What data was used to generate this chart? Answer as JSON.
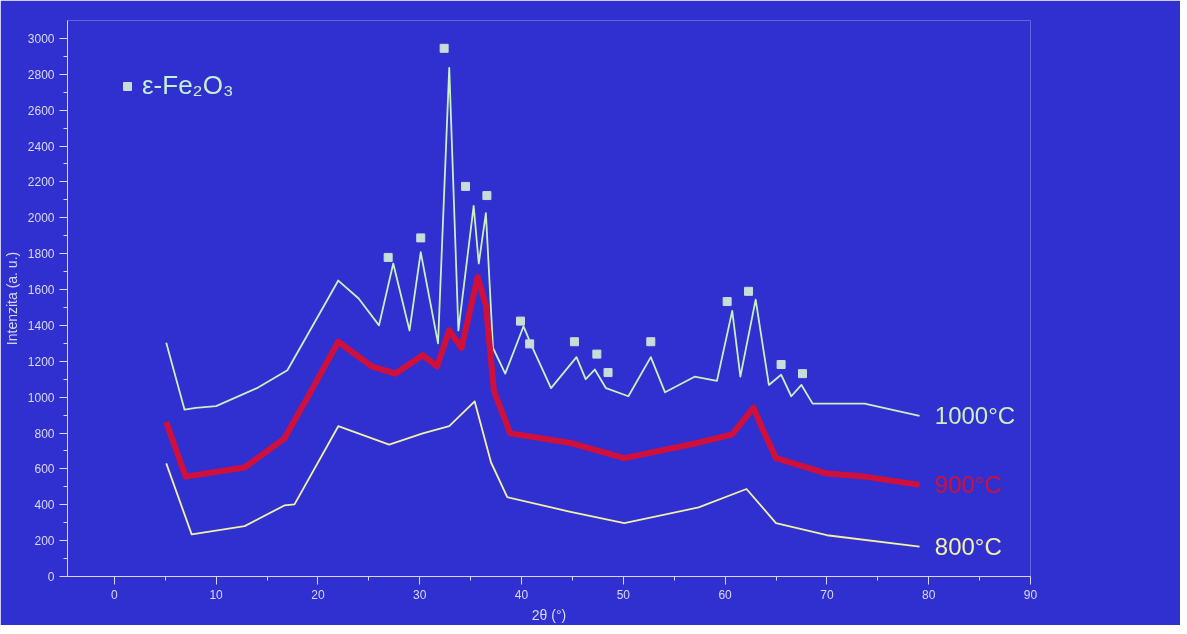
{
  "chart_data": {
    "type": "line",
    "xlabel": "2θ (°)",
    "ylabel": "Intenzita (a. u.)",
    "xlim": [
      -4.6,
      90
    ],
    "ylim": [
      0,
      3100
    ],
    "xticks": [
      0,
      10,
      20,
      30,
      40,
      50,
      60,
      70,
      80,
      90
    ],
    "yticks": [
      0,
      200,
      400,
      600,
      800,
      1000,
      1200,
      1400,
      1600,
      1800,
      2000,
      2200,
      2400,
      2600,
      2800,
      3000
    ],
    "grid": false,
    "legend": "top left",
    "series": [
      {
        "name": "1000°C",
        "color": "#c8f0c0",
        "x": [
          5.1,
          6.9,
          8,
          10,
          14,
          17,
          20,
          22,
          24,
          26,
          27.4,
          29,
          30.1,
          31.8,
          32.9,
          33.8,
          35.3,
          35.8,
          36.5,
          37.2,
          38.4,
          40.2,
          41,
          42.9,
          45.4,
          46.3,
          47.2,
          48.3,
          50.5,
          52.7,
          54.1,
          57,
          59.2,
          60.7,
          61.5,
          63,
          64.3,
          65.5,
          66.5,
          67.5,
          68.6,
          73.7,
          79.1
        ],
        "values": [
          1303,
          930,
          940,
          950,
          1050,
          1150,
          1450,
          1650,
          1550,
          1400,
          1745,
          1372,
          1808,
          1300,
          2836,
          1372,
          2066,
          1745,
          2026,
          1274,
          1131,
          1395,
          1286,
          1050,
          1223,
          1100,
          1154,
          1050,
          1005,
          1223,
          1027,
          1114,
          1091,
          1481,
          1114,
          1544,
          1068,
          1125,
          1005,
          1068,
          964,
          964,
          895
        ]
      },
      {
        "name": "900°C",
        "color": "#d0103a",
        "x": [
          5.1,
          7,
          12.8,
          16.7,
          19,
          22,
          25.3,
          27.6,
          30.3,
          31.7,
          32.9,
          34.1,
          35.7,
          36.5,
          37.3,
          38.9,
          44.7,
          50.1,
          57.4,
          60.7,
          62.8,
          63.6,
          65,
          70,
          73.7,
          79.1
        ],
        "values": [
          861,
          557,
          608,
          769,
          1000,
          1309,
          1171,
          1131,
          1234,
          1171,
          1372,
          1274,
          1670,
          1510,
          1033,
          798,
          746,
          660,
          746,
          792,
          941,
          832,
          660,
          574,
          557,
          511
        ]
      },
      {
        "name": "800°C",
        "color": "#f0f0a8",
        "x": [
          5.1,
          7.6,
          12.8,
          16.7,
          17.7,
          22,
          27,
          30.3,
          32.9,
          35.4,
          37,
          38.6,
          44.7,
          50.1,
          57.4,
          62.1,
          65,
          70,
          79.1
        ],
        "values": [
          631,
          235,
          281,
          396,
          402,
          838,
          735,
          798,
          838,
          976,
          637,
          442,
          362,
          298,
          385,
          488,
          298,
          230,
          166
        ]
      },
      {
        "name": "ε-Fe₂O₃",
        "type": "scatter",
        "marker": "square",
        "color": "#c8dcd8",
        "x": [
          26.9,
          30.1,
          32.4,
          34.5,
          36.6,
          39.9,
          40.8,
          45.2,
          47.4,
          48.5,
          52.7,
          60.2,
          62.3,
          65.5,
          67.6
        ],
        "values": [
          1779,
          1888,
          2945,
          2175,
          2124,
          1424,
          1297,
          1309,
          1240,
          1137,
          1309,
          1533,
          1590,
          1182,
          1131
        ]
      }
    ]
  }
}
